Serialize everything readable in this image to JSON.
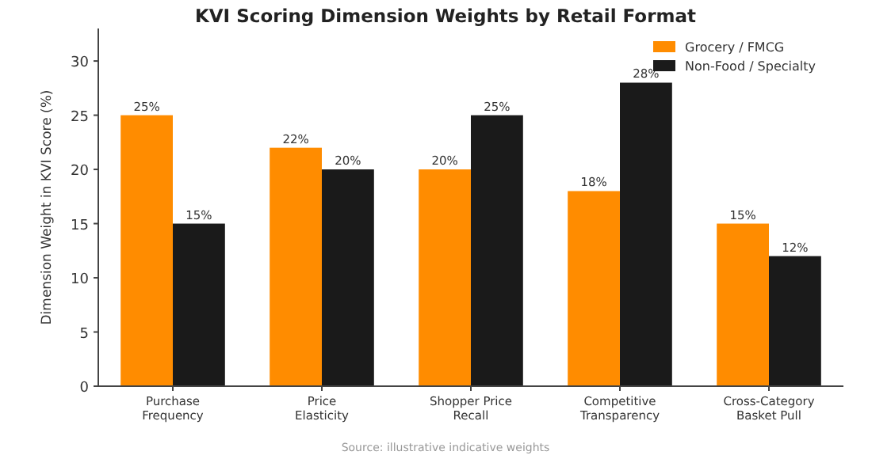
{
  "chart_data": {
    "type": "bar",
    "title": "KVI Scoring Dimension Weights by Retail Format",
    "ylabel": "Dimension Weight in KVI Score (%)",
    "categories": [
      "Purchase\nFrequency",
      "Price\nElasticity",
      "Shopper Price\nRecall",
      "Competitive\nTransparency",
      "Cross-Category\nBasket Pull"
    ],
    "series": [
      {
        "name": "Grocery / FMCG",
        "color": "#ff8c00",
        "values": [
          25,
          22,
          20,
          18,
          15
        ],
        "value_labels": [
          "25%",
          "22%",
          "20%",
          "18%",
          "15%"
        ]
      },
      {
        "name": "Non-Food / Specialty",
        "color": "#1a1a1a",
        "values": [
          15,
          20,
          25,
          28,
          12
        ],
        "value_labels": [
          "15%",
          "20%",
          "25%",
          "28%",
          "12%"
        ]
      }
    ],
    "ylim": [
      0,
      33
    ],
    "yticks": [
      0,
      5,
      10,
      15,
      20,
      25,
      30
    ],
    "legend": "top right",
    "grid": false,
    "annotations": [
      "Source: illustrative indicative weights"
    ]
  }
}
